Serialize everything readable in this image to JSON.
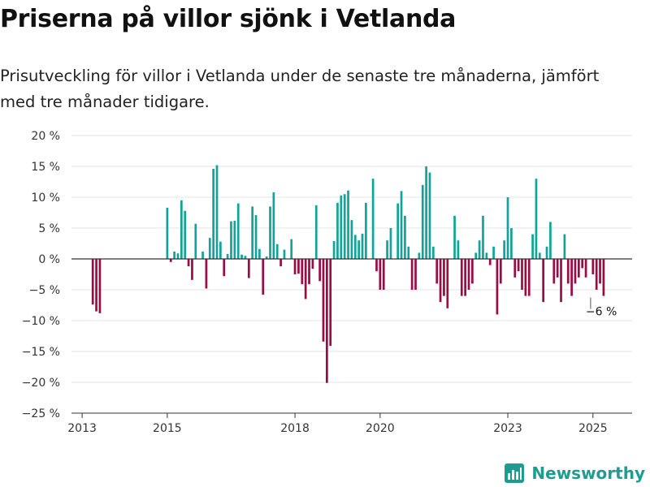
{
  "title": "Priserna på villor sjönk i Vetlanda",
  "subtitle": "Prisutveckling för villor i Vetlanda under de senaste tre månaderna, jämfört med tre månader tidigare.",
  "brand": "Newsworthy",
  "colors": {
    "positive": "#12a39a",
    "negative": "#9b0b46",
    "grid": "#e3e3e3",
    "zero": "#333333",
    "brand": "#1e9c8f"
  },
  "chart_data": {
    "type": "bar",
    "title": "Priserna på villor sjönk i Vetlanda",
    "subtitle": "Prisutveckling för villor i Vetlanda under de senaste tre månaderna, jämfört med tre månader tidigare.",
    "xlabel": "",
    "ylabel": "",
    "ylim": [
      -25,
      20
    ],
    "yticks": [
      20,
      15,
      10,
      5,
      0,
      -5,
      -10,
      -15,
      -20,
      -25
    ],
    "ytick_labels": [
      "20 %",
      "15 %",
      "10 %",
      "5 %",
      "0 %",
      "−5 %",
      "−10 %",
      "−15 %",
      "−20 %",
      "−25 %"
    ],
    "xticks": [
      "2013",
      "2015",
      "2018",
      "2020",
      "2023",
      "2025"
    ],
    "grid": true,
    "annotation": {
      "date": "2025-04",
      "text": "−6 %"
    },
    "dates": [
      "2013-04",
      "2013-05",
      "2013-06",
      "2015-01",
      "2015-02",
      "2015-03",
      "2015-04",
      "2015-05",
      "2015-06",
      "2015-07",
      "2015-08",
      "2015-09",
      "2015-11",
      "2015-12",
      "2016-01",
      "2016-02",
      "2016-03",
      "2016-04",
      "2016-05",
      "2016-06",
      "2016-07",
      "2016-08",
      "2016-09",
      "2016-10",
      "2016-11",
      "2016-12",
      "2017-01",
      "2017-02",
      "2017-03",
      "2017-04",
      "2017-05",
      "2017-06",
      "2017-07",
      "2017-08",
      "2017-09",
      "2017-10",
      "2017-12",
      "2018-01",
      "2018-02",
      "2018-03",
      "2018-04",
      "2018-05",
      "2018-06",
      "2018-07",
      "2018-08",
      "2018-09",
      "2018-10",
      "2018-11",
      "2018-12",
      "2019-01",
      "2019-02",
      "2019-03",
      "2019-04",
      "2019-05",
      "2019-06",
      "2019-07",
      "2019-08",
      "2019-09",
      "2019-11",
      "2019-12",
      "2020-01",
      "2020-02",
      "2020-03",
      "2020-04",
      "2020-06",
      "2020-07",
      "2020-08",
      "2020-09",
      "2020-10",
      "2020-11",
      "2020-12",
      "2021-01",
      "2021-02",
      "2021-03",
      "2021-04",
      "2021-05",
      "2021-06",
      "2021-07",
      "2021-08",
      "2021-10",
      "2021-11",
      "2021-12",
      "2022-01",
      "2022-02",
      "2022-03",
      "2022-04",
      "2022-05",
      "2022-06",
      "2022-07",
      "2022-08",
      "2022-09",
      "2022-10",
      "2022-11",
      "2022-12",
      "2023-01",
      "2023-02",
      "2023-03",
      "2023-04",
      "2023-05",
      "2023-06",
      "2023-07",
      "2023-08",
      "2023-09",
      "2023-10",
      "2023-11",
      "2023-12",
      "2024-01",
      "2024-02",
      "2024-03",
      "2024-04",
      "2024-05",
      "2024-06",
      "2024-07",
      "2024-08",
      "2024-09",
      "2024-10",
      "2024-11",
      "2025-01",
      "2025-02",
      "2025-03",
      "2025-04"
    ],
    "values": [
      -7.4,
      -8.5,
      -8.8,
      8.3,
      -0.5,
      1.2,
      0.9,
      9.5,
      7.8,
      -1.2,
      -3.4,
      5.7,
      1.2,
      -4.8,
      3.4,
      14.6,
      15.2,
      2.8,
      -2.8,
      0.8,
      6.1,
      6.2,
      9.0,
      0.7,
      0.5,
      -3.1,
      8.5,
      7.1,
      1.6,
      -5.8,
      0.4,
      8.5,
      10.8,
      2.4,
      -1.2,
      1.5,
      3.2,
      -2.5,
      -2.4,
      -4.1,
      -6.5,
      -4.1,
      -1.6,
      8.7,
      -3.6,
      -13.4,
      -20.1,
      -14.1,
      2.9,
      9.1,
      10.3,
      10.5,
      11.1,
      6.3,
      3.9,
      3.0,
      4.1,
      9.1,
      13.0,
      -2.0,
      -5.0,
      -5.0,
      3.0,
      5.0,
      9.0,
      11.0,
      7.0,
      2.0,
      -5.0,
      -5.0,
      1.0,
      12.0,
      15.0,
      14.0,
      2.0,
      -4.0,
      -7.0,
      -6.0,
      -8.0,
      7.0,
      3.0,
      -6.0,
      -6.0,
      -5.0,
      -4.0,
      1.0,
      3.0,
      7.0,
      1.0,
      -1.0,
      2.0,
      -9.0,
      -4.0,
      3.0,
      10.0,
      5.0,
      -3.0,
      -2.0,
      -5.0,
      -6.0,
      -6.0,
      4.0,
      13.0,
      1.0,
      -7.0,
      2.0,
      6.0,
      -4.0,
      -3.0,
      -7.0,
      4.0,
      -4.0,
      -6.0,
      -4.0,
      -3.0,
      -1.5,
      -3.0,
      -2.5,
      -5.0,
      -4.0,
      -6.0
    ]
  }
}
